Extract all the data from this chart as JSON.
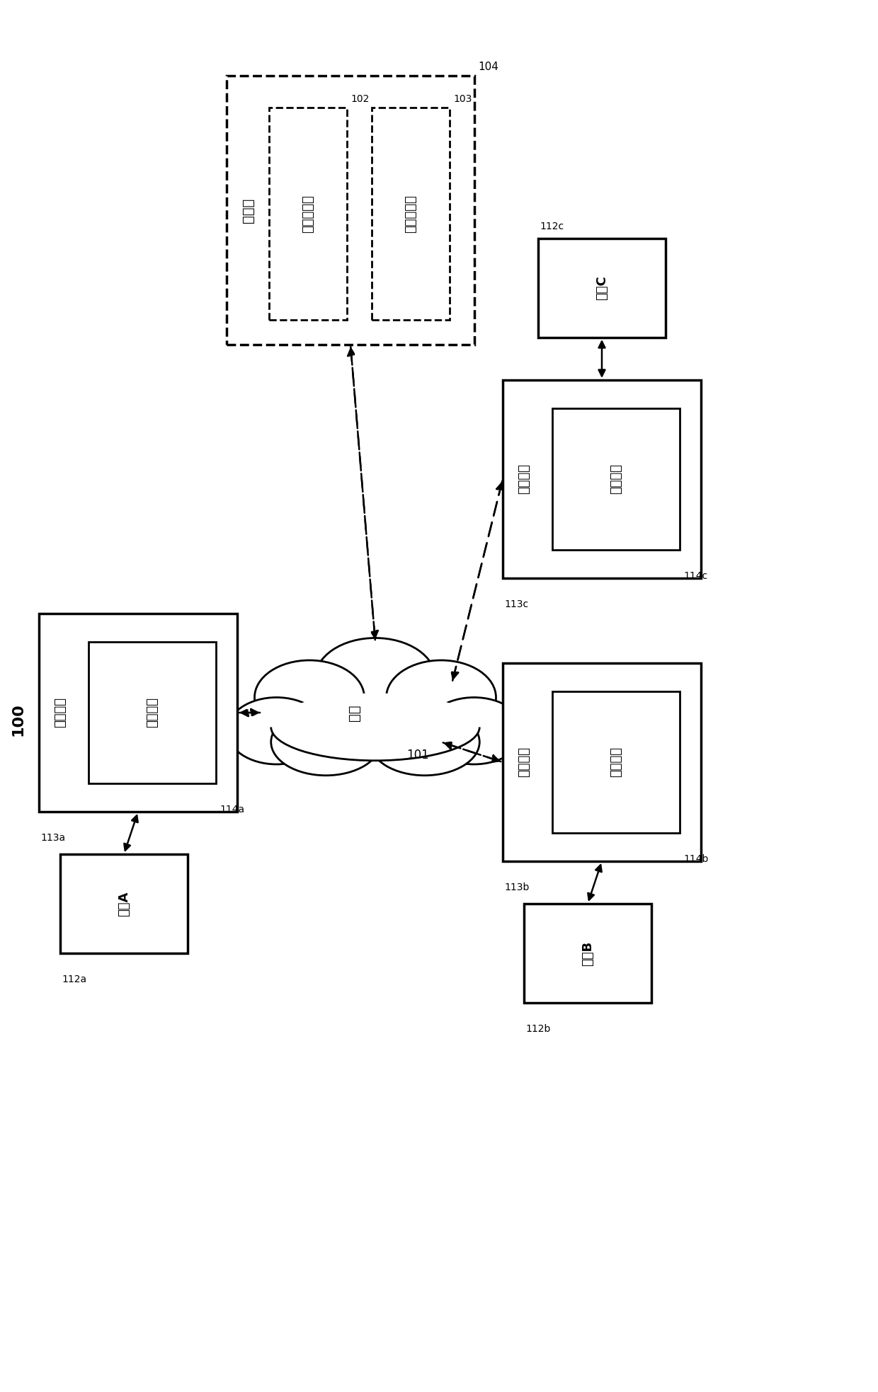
{
  "bg_color": "#ffffff",
  "fig_label": "100",
  "cloud_label": "网络",
  "cloud_num": "101",
  "server_label": "服务器",
  "server_num": "104",
  "file_proc_label": "文件处理器",
  "file_proc_num": "102",
  "db_label": "电子数据库",
  "db_num": "103",
  "ua_device_label": "用户设备",
  "ua_ui_label": "用户界面",
  "ua_device_num": "113a",
  "ua_ui_num": "114a",
  "ua_user_label": "用户A",
  "ua_user_num": "112a",
  "ub_device_label": "用户设备",
  "ub_ui_label": "用户界面",
  "ub_device_num": "113b",
  "ub_ui_num": "114b",
  "ub_user_label": "用户B",
  "ub_user_num": "112b",
  "uc_device_label": "用户设备",
  "uc_ui_label": "用户界面",
  "uc_device_num": "113c",
  "uc_ui_num": "114c",
  "uc_user_label": "用户C",
  "uc_user_num": "112c"
}
